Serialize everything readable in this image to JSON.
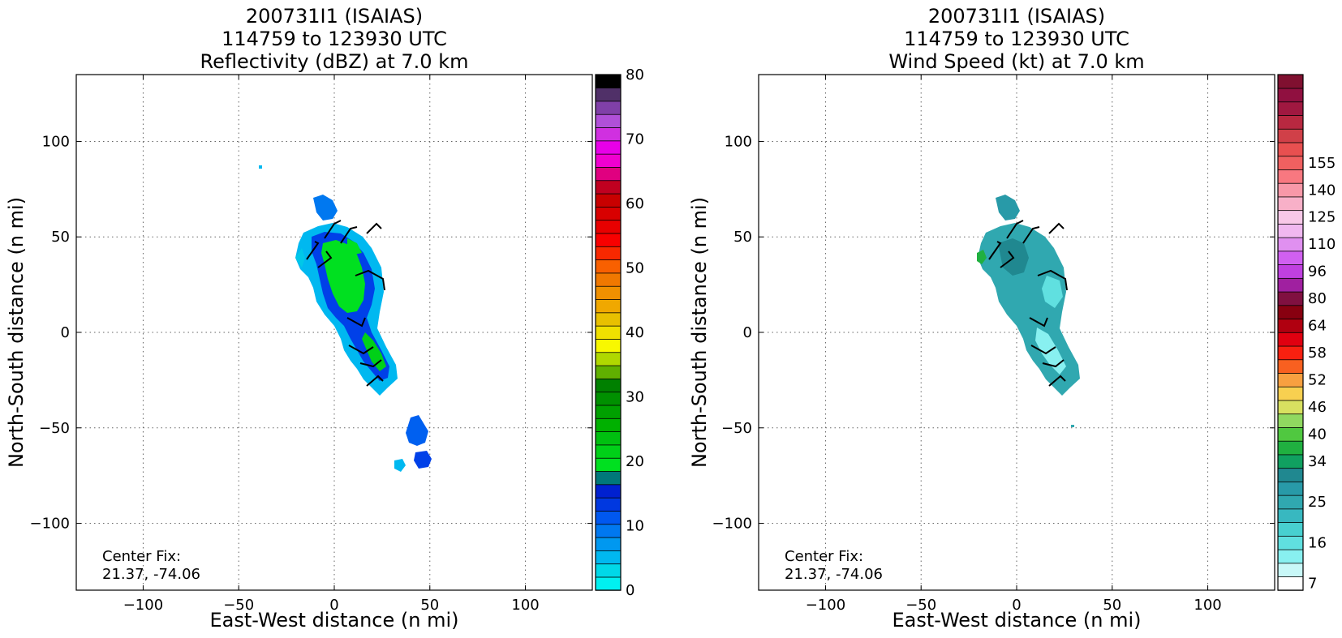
{
  "chart_data": [
    {
      "type": "heatmap",
      "title_lines": [
        "200731I1 (ISAIAS)",
        "114759 to 123930 UTC",
        "Reflectivity (dBZ) at 7.0 km"
      ],
      "xlabel": "East-West distance (n mi)",
      "ylabel": "North-South distance (n mi)",
      "xlim": [
        -135,
        135
      ],
      "ylim": [
        -135,
        135
      ],
      "xticks": [
        -100,
        -50,
        0,
        50,
        100
      ],
      "yticks": [
        -100,
        -50,
        0,
        50,
        100
      ],
      "grid": true,
      "annotation": [
        "Center Fix:",
        "21.37, -74.06"
      ],
      "colorbar": {
        "min": 0,
        "max": 80,
        "ticks": [
          0,
          10,
          20,
          30,
          40,
          50,
          60,
          70,
          80
        ],
        "colors": [
          "#00f0f0",
          "#00d8e8",
          "#00b8f0",
          "#0098f0",
          "#0078f0",
          "#0058f0",
          "#0038e0",
          "#0020d0",
          "#00787a",
          "#00e020",
          "#00d018",
          "#00c010",
          "#00b000",
          "#00a000",
          "#009000",
          "#008000",
          "#60b000",
          "#b0d800",
          "#f8f800",
          "#f0e000",
          "#e8c000",
          "#f0a800",
          "#f09000",
          "#f07800",
          "#f86000",
          "#f82800",
          "#f80000",
          "#e80000",
          "#d80000",
          "#c80000",
          "#c00020",
          "#e00080",
          "#f000d0",
          "#e800e8",
          "#d030e0",
          "#b050d8",
          "#8040a8",
          "#503068",
          "#000000"
        ]
      }
    },
    {
      "type": "heatmap",
      "title_lines": [
        "200731I1 (ISAIAS)",
        "114759 to 123930 UTC",
        "Wind Speed (kt) at 7.0 km"
      ],
      "xlabel": "East-West distance (n mi)",
      "ylabel": "North-South distance (n mi)",
      "xlim": [
        -135,
        135
      ],
      "ylim": [
        -135,
        135
      ],
      "xticks": [
        -100,
        -50,
        0,
        50,
        100
      ],
      "yticks": [
        -100,
        -50,
        0,
        50,
        100
      ],
      "grid": true,
      "annotation": [
        "Center Fix:",
        "21.37, -74.06"
      ],
      "colorbar": {
        "ticks": [
          7,
          16,
          25,
          34,
          40,
          46,
          52,
          58,
          64,
          80,
          96,
          110,
          125,
          140,
          155
        ],
        "tick_index": [
          0,
          3,
          6,
          9,
          11,
          13,
          15,
          17,
          19,
          21,
          23,
          25,
          27,
          29,
          31
        ],
        "colors": [
          "#ffffff",
          "#c8f8f8",
          "#88f0f0",
          "#60e0e0",
          "#48d0d0",
          "#38b8c0",
          "#30a8b0",
          "#289aa8",
          "#208890",
          "#10a060",
          "#20b040",
          "#50c840",
          "#90d860",
          "#d8e060",
          "#f8d050",
          "#f8a040",
          "#f86020",
          "#f82010",
          "#e00010",
          "#b00010",
          "#880010",
          "#801040",
          "#a020a0",
          "#c040e0",
          "#d060f0",
          "#e090f0",
          "#f0b8f0",
          "#f8c8e8",
          "#f8b0c8",
          "#f898a8",
          "#f87880",
          "#f06060",
          "#e85050",
          "#d04048",
          "#b82840",
          "#a01840",
          "#901040",
          "#801030"
        ]
      }
    }
  ]
}
